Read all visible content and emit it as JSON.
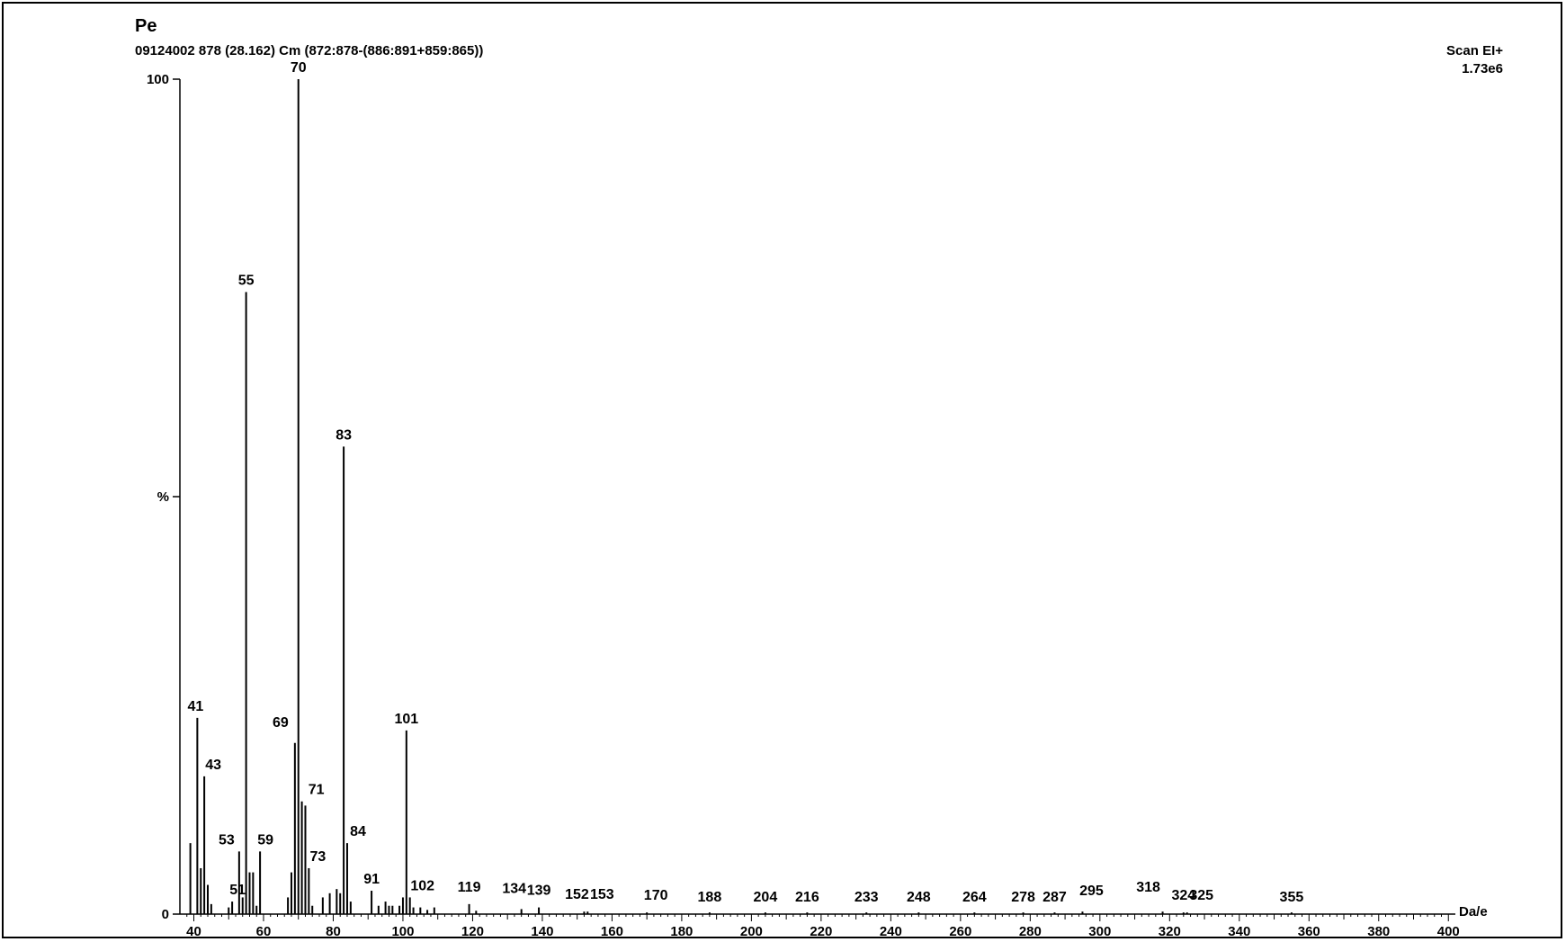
{
  "header": {
    "title": "Pe",
    "subtitle": "09124002 878 (28.162) Cm (872:878-(886:891+859:865))",
    "scan_type": "Scan EI+",
    "scale": "1.73e6"
  },
  "chart_data": {
    "type": "bar",
    "title": "Pe",
    "xlabel": "Da/e",
    "ylabel": "%",
    "xlim": [
      36,
      402
    ],
    "ylim": [
      0,
      100
    ],
    "y_tick_labels": [
      "100",
      "%",
      "0"
    ],
    "x_ticks": [
      40,
      60,
      80,
      100,
      120,
      140,
      160,
      180,
      200,
      220,
      240,
      260,
      280,
      300,
      320,
      340,
      360,
      380,
      400
    ],
    "labeled_peaks": [
      {
        "mz": 41,
        "intensity": 23.5,
        "label": "41"
      },
      {
        "mz": 43,
        "intensity": 16.5,
        "label": "43"
      },
      {
        "mz": 51,
        "intensity": 1.5,
        "label": "51"
      },
      {
        "mz": 53,
        "intensity": 7.5,
        "label": "53"
      },
      {
        "mz": 55,
        "intensity": 74.5,
        "label": "55"
      },
      {
        "mz": 59,
        "intensity": 7.5,
        "label": "59"
      },
      {
        "mz": 69,
        "intensity": 20.5,
        "label": "69"
      },
      {
        "mz": 70,
        "intensity": 100,
        "label": "70"
      },
      {
        "mz": 71,
        "intensity": 13.5,
        "label": "71"
      },
      {
        "mz": 73,
        "intensity": 5.5,
        "label": "73"
      },
      {
        "mz": 83,
        "intensity": 56,
        "label": "83"
      },
      {
        "mz": 84,
        "intensity": 8.5,
        "label": "84"
      },
      {
        "mz": 91,
        "intensity": 2.8,
        "label": "91"
      },
      {
        "mz": 101,
        "intensity": 22,
        "label": "101"
      },
      {
        "mz": 102,
        "intensity": 2,
        "label": "102"
      },
      {
        "mz": 119,
        "intensity": 1.2,
        "label": "119"
      },
      {
        "mz": 134,
        "intensity": 0.6,
        "label": "134"
      },
      {
        "mz": 139,
        "intensity": 0.8,
        "label": "139"
      },
      {
        "mz": 152,
        "intensity": 0.3,
        "label": "152"
      },
      {
        "mz": 153,
        "intensity": 0.3,
        "label": "153"
      },
      {
        "mz": 170,
        "intensity": 0.2,
        "label": "170"
      },
      {
        "mz": 188,
        "intensity": 0.2,
        "label": "188"
      },
      {
        "mz": 204,
        "intensity": 0.2,
        "label": "204"
      },
      {
        "mz": 216,
        "intensity": 0.2,
        "label": "216"
      },
      {
        "mz": 233,
        "intensity": 0.2,
        "label": "233"
      },
      {
        "mz": 248,
        "intensity": 0.2,
        "label": "248"
      },
      {
        "mz": 264,
        "intensity": 0.2,
        "label": "264"
      },
      {
        "mz": 278,
        "intensity": 0.2,
        "label": "278"
      },
      {
        "mz": 287,
        "intensity": 0.2,
        "label": "287"
      },
      {
        "mz": 295,
        "intensity": 0.3,
        "label": "295"
      },
      {
        "mz": 318,
        "intensity": 0.3,
        "label": "318"
      },
      {
        "mz": 324,
        "intensity": 0.2,
        "label": "324"
      },
      {
        "mz": 325,
        "intensity": 0.2,
        "label": "325"
      },
      {
        "mz": 355,
        "intensity": 0.2,
        "label": "355"
      }
    ],
    "minor_peaks": [
      {
        "mz": 39,
        "intensity": 8.5
      },
      {
        "mz": 42,
        "intensity": 5.5
      },
      {
        "mz": 44,
        "intensity": 3.5
      },
      {
        "mz": 45,
        "intensity": 1.2
      },
      {
        "mz": 50,
        "intensity": 0.8
      },
      {
        "mz": 54,
        "intensity": 2.0
      },
      {
        "mz": 56,
        "intensity": 5.0
      },
      {
        "mz": 57,
        "intensity": 5.0
      },
      {
        "mz": 58,
        "intensity": 1.0
      },
      {
        "mz": 67,
        "intensity": 2.0
      },
      {
        "mz": 68,
        "intensity": 5.0
      },
      {
        "mz": 72,
        "intensity": 13.0
      },
      {
        "mz": 74,
        "intensity": 1.0
      },
      {
        "mz": 77,
        "intensity": 2.0
      },
      {
        "mz": 79,
        "intensity": 2.5
      },
      {
        "mz": 81,
        "intensity": 3.0
      },
      {
        "mz": 82,
        "intensity": 2.5
      },
      {
        "mz": 85,
        "intensity": 1.5
      },
      {
        "mz": 93,
        "intensity": 1.0
      },
      {
        "mz": 95,
        "intensity": 1.5
      },
      {
        "mz": 96,
        "intensity": 1.0
      },
      {
        "mz": 97,
        "intensity": 1.0
      },
      {
        "mz": 99,
        "intensity": 1.0
      },
      {
        "mz": 100,
        "intensity": 2.0
      },
      {
        "mz": 103,
        "intensity": 0.8
      },
      {
        "mz": 105,
        "intensity": 0.8
      },
      {
        "mz": 107,
        "intensity": 0.5
      },
      {
        "mz": 109,
        "intensity": 0.8
      },
      {
        "mz": 121,
        "intensity": 0.4
      }
    ]
  }
}
